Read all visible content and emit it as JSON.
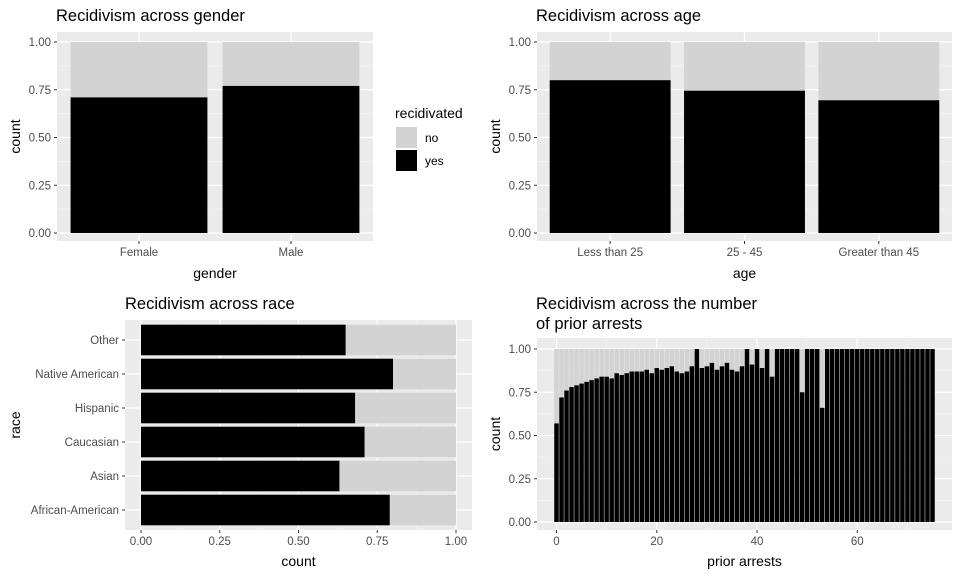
{
  "colors": {
    "panel_bg": "#ebebeb",
    "grid_major": "#ffffff",
    "grid_minor": "#f4f4f4",
    "no": "#d3d3d3",
    "yes": "#000000",
    "tick_text": "#4d4d4d"
  },
  "legend": {
    "title": "recidivated",
    "items": [
      {
        "label": "no",
        "color": "#d3d3d3"
      },
      {
        "label": "yes",
        "color": "#000000"
      }
    ]
  },
  "chart_data": [
    {
      "id": "gender",
      "type": "bar",
      "stacked": "fill",
      "orientation": "vertical",
      "title": "Recidivism across gender",
      "xlabel": "gender",
      "ylabel": "count",
      "categories": [
        "Female",
        "Male"
      ],
      "series": [
        {
          "name": "no",
          "values": [
            0.29,
            0.23
          ]
        },
        {
          "name": "yes",
          "values": [
            0.71,
            0.77
          ]
        }
      ],
      "ylim": [
        0,
        1
      ],
      "yticks": [
        "0.00",
        "0.25",
        "0.50",
        "0.75",
        "1.00"
      ],
      "grid": true
    },
    {
      "id": "age",
      "type": "bar",
      "stacked": "fill",
      "orientation": "vertical",
      "title": "Recidivism across age",
      "xlabel": "age",
      "ylabel": "count",
      "categories": [
        "Less than 25",
        "25 - 45",
        "Greater than 45"
      ],
      "series": [
        {
          "name": "no",
          "values": [
            0.2,
            0.255,
            0.305
          ]
        },
        {
          "name": "yes",
          "values": [
            0.8,
            0.745,
            0.695
          ]
        }
      ],
      "ylim": [
        0,
        1
      ],
      "yticks": [
        "0.00",
        "0.25",
        "0.50",
        "0.75",
        "1.00"
      ],
      "grid": true
    },
    {
      "id": "race",
      "type": "bar",
      "stacked": "fill",
      "orientation": "horizontal",
      "title": "Recidivism across race",
      "xlabel": "count",
      "ylabel": "race",
      "categories": [
        "African-American",
        "Asian",
        "Caucasian",
        "Hispanic",
        "Native American",
        "Other"
      ],
      "series": [
        {
          "name": "no",
          "values": [
            0.21,
            0.37,
            0.29,
            0.32,
            0.2,
            0.35
          ]
        },
        {
          "name": "yes",
          "values": [
            0.79,
            0.63,
            0.71,
            0.68,
            0.8,
            0.65
          ]
        }
      ],
      "xlim": [
        0,
        1
      ],
      "xticks": [
        "0.00",
        "0.25",
        "0.50",
        "0.75",
        "1.00"
      ],
      "grid": true
    },
    {
      "id": "prior",
      "type": "bar",
      "stacked": "fill",
      "orientation": "vertical",
      "title_lines": [
        "Recidivism across the number",
        "of prior arrests"
      ],
      "xlabel": "prior arrests",
      "ylabel": "count",
      "x": [
        0,
        1,
        2,
        3,
        4,
        5,
        6,
        7,
        8,
        9,
        10,
        11,
        12,
        13,
        14,
        15,
        16,
        17,
        18,
        19,
        20,
        21,
        22,
        23,
        24,
        25,
        26,
        27,
        28,
        29,
        30,
        31,
        32,
        33,
        34,
        35,
        36,
        37,
        38,
        39,
        40,
        41,
        42,
        43,
        44,
        45,
        46,
        47,
        48,
        49,
        50,
        51,
        52,
        53,
        54,
        55,
        56,
        57,
        58,
        59,
        60,
        61,
        62,
        63,
        64,
        65,
        66,
        67,
        68,
        69,
        70,
        71,
        72,
        73,
        74,
        75
      ],
      "series": [
        {
          "name": "yes",
          "values": [
            0.57,
            0.72,
            0.76,
            0.78,
            0.79,
            0.8,
            0.81,
            0.82,
            0.83,
            0.84,
            0.84,
            0.83,
            0.86,
            0.85,
            0.86,
            0.87,
            0.87,
            0.87,
            0.88,
            0.86,
            0.89,
            0.88,
            0.89,
            0.9,
            0.87,
            0.86,
            0.87,
            0.9,
            1.0,
            0.89,
            0.9,
            0.92,
            0.88,
            0.9,
            0.92,
            0.88,
            0.87,
            0.9,
            1.0,
            0.91,
            1.0,
            0.89,
            1.0,
            0.84,
            1.0,
            1.0,
            1.0,
            1.0,
            1.0,
            0.75,
            1.0,
            1.0,
            1.0,
            0.66,
            1.0,
            1.0,
            1.0,
            1.0,
            1.0,
            1.0,
            1.0,
            1.0,
            1.0,
            1.0,
            1.0,
            1.0,
            1.0,
            1.0,
            1.0,
            1.0,
            1.0,
            1.0,
            1.0,
            1.0,
            1.0,
            1.0
          ]
        }
      ],
      "xticks": [
        0,
        20,
        40,
        60
      ],
      "ylim": [
        0,
        1
      ],
      "yticks": [
        "0.00",
        "0.25",
        "0.50",
        "0.75",
        "1.00"
      ],
      "grid": true
    }
  ]
}
